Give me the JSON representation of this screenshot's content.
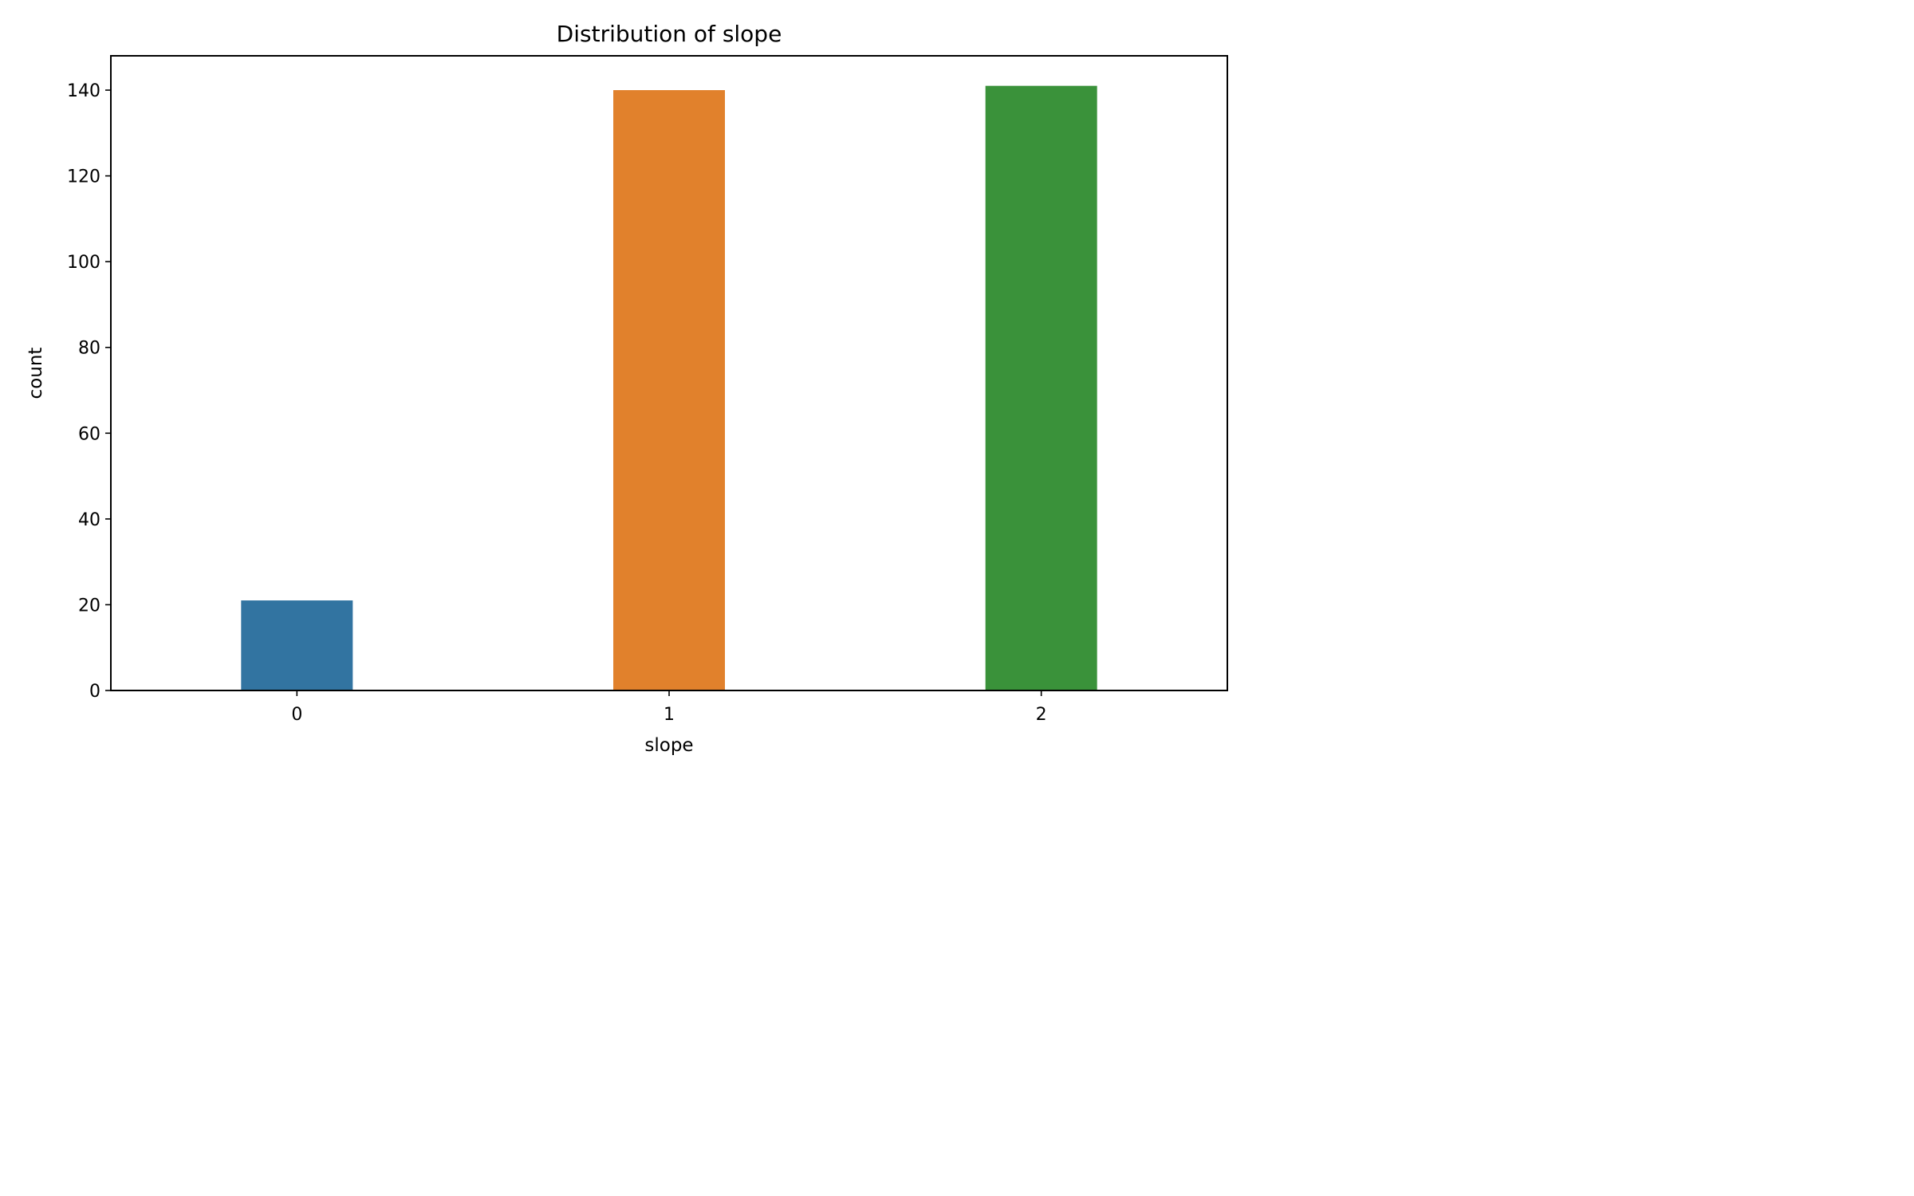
{
  "chart_data": {
    "type": "bar",
    "title": "Distribution of slope",
    "xlabel": "slope",
    "ylabel": "count",
    "categories": [
      "0",
      "1",
      "2"
    ],
    "values": [
      21,
      140,
      141
    ],
    "colors": [
      "#3274a1",
      "#e1812c",
      "#3a923a"
    ],
    "ylim": [
      0,
      148
    ],
    "yticks": [
      0,
      20,
      40,
      60,
      80,
      100,
      120,
      140
    ],
    "grid": false,
    "legend": "none"
  }
}
